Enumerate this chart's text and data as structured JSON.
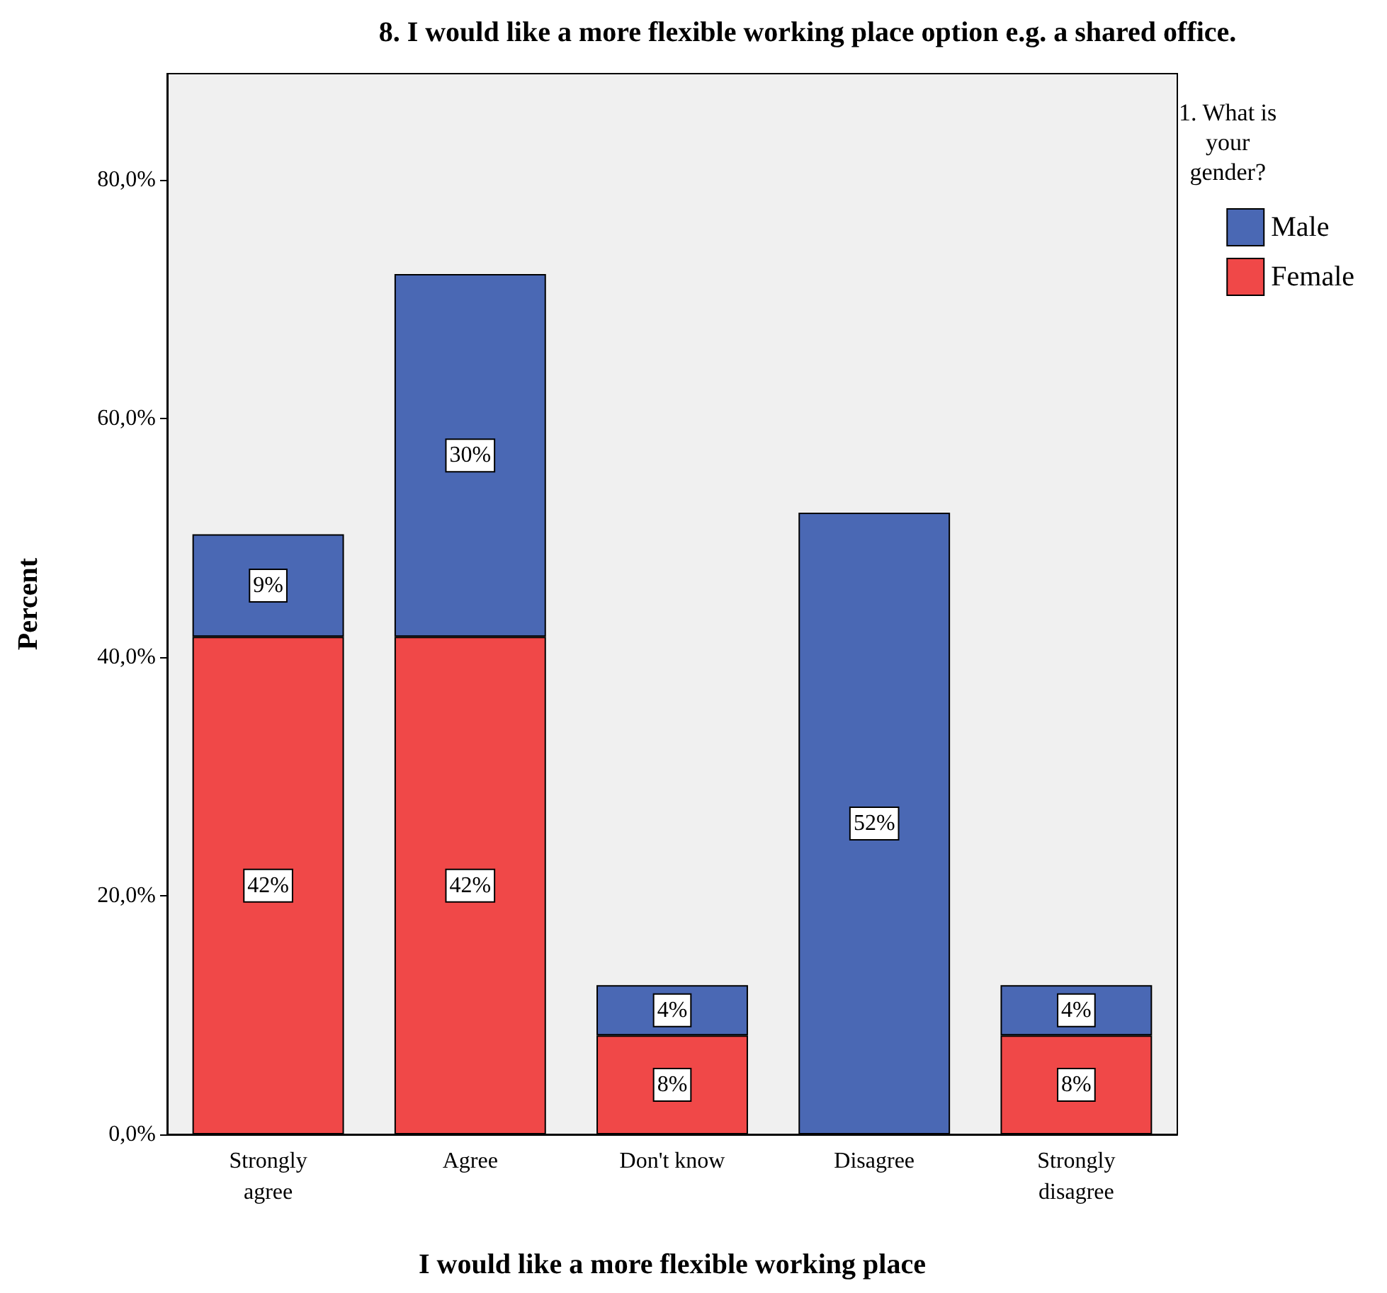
{
  "chart_data": {
    "type": "bar",
    "stacked": true,
    "title": "8. I would like a more flexible working place option e.g. a shared office.",
    "xlabel": "I would like a more flexible working place",
    "ylabel": "Percent",
    "legend_title": "1. What is your gender?",
    "legend": "top right",
    "categories": [
      "Strongly\nagree",
      "Agree",
      "Don't know",
      "Disagree",
      "Strongly\ndisagree"
    ],
    "series": [
      {
        "name": "Female",
        "color": "#f04848",
        "values": [
          41.7,
          41.7,
          8.3,
          null,
          8.3
        ],
        "value_labels": [
          "42%",
          "42%",
          "8%",
          null,
          "8%"
        ]
      },
      {
        "name": "Male",
        "color": "#4a68b4",
        "values": [
          8.6,
          30.4,
          4.2,
          52.1,
          4.2
        ],
        "value_labels": [
          "9%",
          "30%",
          "4%",
          "52%",
          "4%"
        ]
      }
    ],
    "ylim": [
      0,
      88.9
    ],
    "yticks": [
      {
        "value": 0,
        "label": "0,0%"
      },
      {
        "value": 20,
        "label": "20,0%"
      },
      {
        "value": 40,
        "label": "40,0%"
      },
      {
        "value": 60,
        "label": "60,0%"
      },
      {
        "value": 80,
        "label": "80,0%"
      }
    ],
    "grid": false
  }
}
